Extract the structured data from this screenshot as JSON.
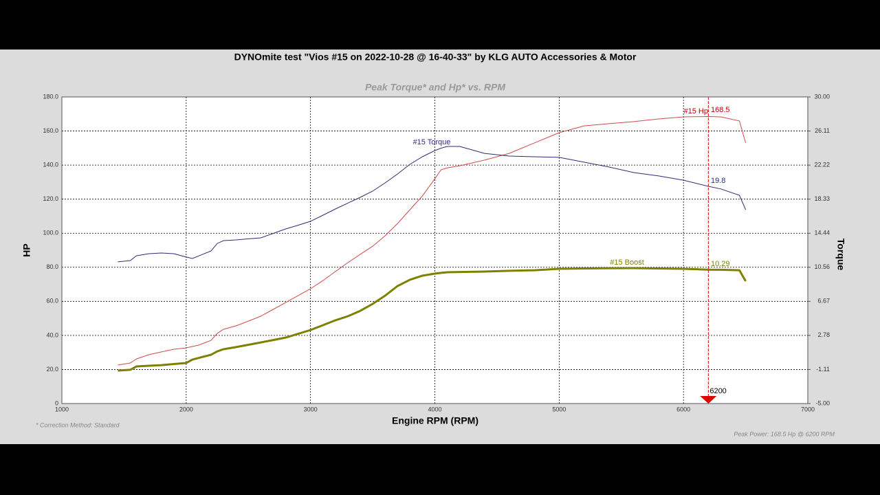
{
  "chart_data": {
    "type": "line",
    "title": "DYNOmite test \"Vios #15 on 2022-10-28 @ 16-40-33\" by KLG AUTO Accessories & Motor",
    "subtitle": "Peak Torque* and Hp* vs. RPM",
    "x_label": "Engine RPM (RPM)",
    "y_label": "HP",
    "y2_label": "Torque",
    "notes": [
      "* Correction Method: Standard",
      "Peak Power: 168.5 Hp @ 6200 RPM"
    ],
    "marker_x": 6200,
    "marker_color": "#e00000",
    "grid": true,
    "xlim": [
      1000,
      7000
    ],
    "xticks": [
      1000,
      2000,
      3000,
      4000,
      5000,
      6000,
      7000
    ],
    "ylim": [
      0,
      180
    ],
    "yticks": [
      0,
      {
        "value": 20,
        "label": "20.0"
      },
      {
        "value": 40,
        "label": "40.0"
      },
      {
        "value": 60,
        "label": "60.0"
      },
      {
        "value": 80,
        "label": "80.0"
      },
      {
        "value": 100,
        "label": "100.0"
      },
      {
        "value": 120,
        "label": "120.0"
      },
      {
        "value": 140,
        "label": "140.0"
      },
      {
        "value": 160,
        "label": "160.0"
      },
      {
        "value": 180,
        "label": "180.0"
      }
    ],
    "y2lim": [
      -5,
      30
    ],
    "y2ticks": [
      {
        "value": -5,
        "label": "-5.00"
      },
      {
        "value": -1.11,
        "label": "-1.11"
      },
      {
        "value": 2.78,
        "label": "2.78"
      },
      {
        "value": 6.67,
        "label": "6.67"
      },
      {
        "value": 10.56,
        "label": "10.56"
      },
      {
        "value": 14.44,
        "label": "14.44"
      },
      {
        "value": 18.33,
        "label": "18.33"
      },
      {
        "value": 22.22,
        "label": "22.22"
      },
      {
        "value": 26.11,
        "label": "26.11"
      },
      {
        "value": 30,
        "label": "30.00"
      }
    ],
    "x": [
      1450,
      1550,
      1600,
      1700,
      1800,
      1900,
      2000,
      2050,
      2100,
      2200,
      2250,
      2300,
      2400,
      2500,
      2600,
      2700,
      2800,
      2900,
      3000,
      3100,
      3200,
      3300,
      3400,
      3500,
      3600,
      3700,
      3800,
      3900,
      4000,
      4050,
      4100,
      4200,
      4400,
      4600,
      4800,
      5000,
      5200,
      5400,
      5600,
      5800,
      6000,
      6200,
      6300,
      6450,
      6500
    ],
    "series": [
      {
        "name": "#15 Hp",
        "color": "#d04848",
        "label_color": "#c00000",
        "width": 1,
        "values": [
          22.6,
          23.8,
          26.2,
          28.7,
          30.3,
          31.9,
          32.7,
          33.5,
          34.3,
          37.1,
          41.2,
          43.6,
          45.6,
          48.4,
          51.3,
          55.3,
          59.3,
          63.4,
          67.4,
          72.2,
          77.5,
          82.7,
          87.6,
          92.4,
          98.5,
          105.7,
          113.8,
          121.9,
          132.0,
          137.2,
          138.4,
          139.6,
          142.9,
          146.9,
          153.0,
          159.0,
          163.0,
          164.3,
          165.5,
          167.1,
          168.3,
          168.5,
          168.3,
          165.9,
          153.0
        ]
      },
      {
        "name": "#15 Torque",
        "color": "#2c2c70",
        "label_color": "#2a2a8a",
        "width": 1,
        "axis": "y2",
        "values": [
          11.17,
          11.32,
          11.87,
          12.11,
          12.19,
          12.11,
          11.72,
          11.56,
          11.85,
          12.42,
          13.28,
          13.6,
          13.68,
          13.8,
          13.91,
          14.42,
          14.93,
          15.36,
          15.8,
          16.5,
          17.21,
          17.88,
          18.54,
          19.25,
          20.19,
          21.21,
          22.31,
          23.17,
          23.88,
          24.15,
          24.35,
          24.35,
          23.56,
          23.25,
          23.17,
          23.1,
          22.55,
          22.0,
          21.37,
          20.98,
          20.5,
          19.8,
          19.5,
          18.78,
          17.13
        ]
      },
      {
        "name": "#15 Boost",
        "color": "#7f7f00",
        "label_color": "#7f7f00",
        "width": 3,
        "axis": "y2",
        "values": [
          -1.23,
          -1.15,
          -0.76,
          -0.68,
          -0.61,
          -0.49,
          -0.37,
          0.02,
          0.2,
          0.57,
          0.96,
          1.2,
          1.44,
          1.71,
          1.98,
          2.25,
          2.53,
          2.96,
          3.4,
          3.95,
          4.5,
          4.97,
          5.59,
          6.38,
          7.32,
          8.42,
          9.13,
          9.6,
          9.83,
          9.92,
          9.99,
          10.02,
          10.07,
          10.15,
          10.22,
          10.38,
          10.42,
          10.45,
          10.46,
          10.42,
          10.38,
          10.29,
          10.27,
          10.22,
          8.97
        ]
      }
    ]
  }
}
